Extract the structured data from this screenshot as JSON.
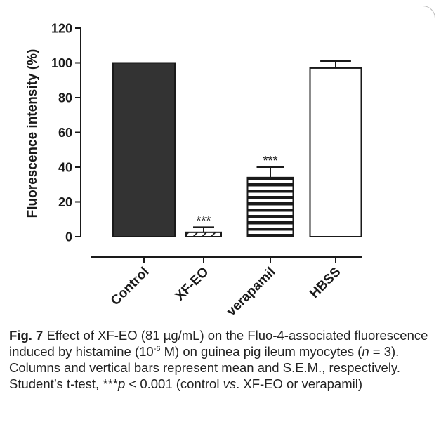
{
  "chart_data": {
    "type": "bar",
    "categories": [
      "Control",
      "XF-EO",
      "verapamil",
      "HBSS"
    ],
    "values": [
      100,
      2.5,
      34,
      97
    ],
    "errors": [
      0,
      3,
      6,
      4
    ],
    "significance": [
      "",
      "***",
      "***",
      ""
    ],
    "ylabel": "Fluorescence intensity (%)",
    "ylim": [
      0,
      120
    ],
    "yticks": [
      0,
      20,
      40,
      60,
      80,
      100,
      120
    ],
    "bar_styles": [
      "solid-dark",
      "diagonal-hatch",
      "horizontal-stripes",
      "white"
    ],
    "colors": {
      "solid": "#333333",
      "stroke": "#1a1a1a"
    }
  },
  "caption": {
    "label": "Fig. 7",
    "part1": " Effect of XF-EO (81 µg/mL) on the Fluo-4-associated fluorescence induced by histamine (10",
    "exp": "-6",
    "part2": " M) on guinea pig ileum myocytes (",
    "n": "n",
    "part3": " = 3). Columns and vertical bars represent mean and S.E.M., respectively. Student’s t-test, ***",
    "p": "p",
    "part4": " < 0.001 (control ",
    "vs": "vs",
    "part5": ". XF-EO or verapamil)"
  }
}
